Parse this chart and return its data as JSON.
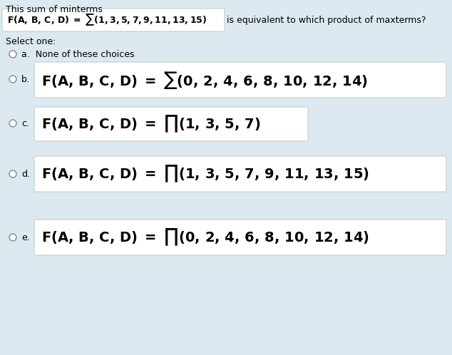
{
  "bg_color": "#dce9f0",
  "white_box_color": "#ffffff",
  "border_color": "#cccccc",
  "text_color": "#000000",
  "title_text": "This sum of minterms",
  "select_one": "Select one:",
  "question_suffix": "is equivalent to which product of maxterms?",
  "circle_color": "#888888",
  "options": [
    {
      "label": "a.",
      "text": "None of these choices",
      "has_box": false
    },
    {
      "label": "b.",
      "has_box": true,
      "symbol": "sum",
      "args": "(0, 2, 4, 6, 8, 10, 12, 14)"
    },
    {
      "label": "c.",
      "has_box": true,
      "symbol": "prod",
      "args": "(1, 3, 5, 7)"
    },
    {
      "label": "d.",
      "has_box": true,
      "symbol": "prod",
      "args": "(1, 3, 5, 7, 9, 11, 13, 15)"
    },
    {
      "label": "e.",
      "has_box": true,
      "symbol": "prod",
      "args": "(0, 2, 4, 6, 8, 10, 12, 14)"
    }
  ]
}
